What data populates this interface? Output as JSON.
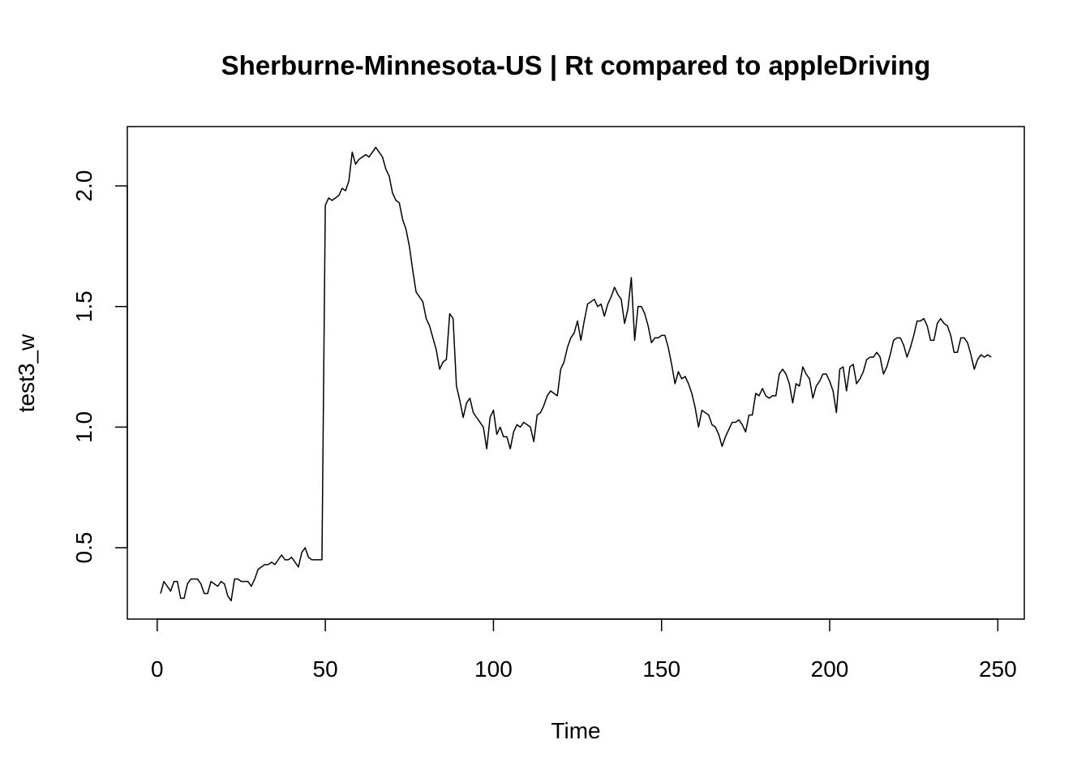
{
  "chart_data": {
    "type": "line",
    "title": "Sherburne-Minnesota-US | Rt compared to appleDriving",
    "x_label": "Time",
    "y_label": "test3_w",
    "xlim": [
      -8.88,
      257.88
    ],
    "ylim": [
      0.204,
      2.246
    ],
    "xticks": [
      0,
      50,
      100,
      150,
      200,
      250
    ],
    "yticks": [
      0.5,
      {
        "value": 1,
        "label": "1.0"
      },
      1.5,
      {
        "value": 2,
        "label": "2.0"
      }
    ],
    "series": [
      {
        "color": "#000000",
        "x": [
          1,
          2,
          3,
          4,
          5,
          6,
          7,
          8,
          9,
          10,
          11,
          12,
          13,
          14,
          15,
          16,
          17,
          18,
          19,
          20,
          21,
          22,
          23,
          24,
          25,
          26,
          27,
          28,
          29,
          30,
          31,
          32,
          33,
          34,
          35,
          36,
          37,
          38,
          39,
          40,
          41,
          42,
          43,
          44,
          45,
          46,
          47,
          48,
          49,
          50,
          51,
          52,
          53,
          54,
          55,
          56,
          57,
          58,
          59,
          60,
          61,
          62,
          63,
          64,
          65,
          66,
          67,
          68,
          69,
          70,
          71,
          72,
          73,
          74,
          75,
          76,
          77,
          78,
          79,
          80,
          81,
          82,
          83,
          84,
          85,
          86,
          87,
          88,
          89,
          90,
          91,
          92,
          93,
          94,
          95,
          96,
          97,
          98,
          99,
          100,
          101,
          102,
          103,
          104,
          105,
          106,
          107,
          108,
          109,
          110,
          111,
          112,
          113,
          114,
          115,
          116,
          117,
          118,
          119,
          120,
          121,
          122,
          123,
          124,
          125,
          126,
          127,
          128,
          129,
          130,
          131,
          132,
          133,
          134,
          135,
          136,
          137,
          138,
          139,
          140,
          141,
          142,
          143,
          144,
          145,
          146,
          147,
          148,
          149,
          150,
          151,
          152,
          153,
          154,
          155,
          156,
          157,
          158,
          159,
          160,
          161,
          162,
          163,
          164,
          165,
          166,
          167,
          168,
          169,
          170,
          171,
          172,
          173,
          174,
          175,
          176,
          177,
          178,
          179,
          180,
          181,
          182,
          183,
          184,
          185,
          186,
          187,
          188,
          189,
          190,
          191,
          192,
          193,
          194,
          195,
          196,
          197,
          198,
          199,
          200,
          201,
          202,
          203,
          204,
          205,
          206,
          207,
          208,
          209,
          210,
          211,
          212,
          213,
          214,
          215,
          216,
          217,
          218,
          219,
          220,
          221,
          222,
          223,
          224,
          225,
          226,
          227,
          228,
          229,
          230,
          231,
          232,
          233,
          234,
          235,
          236,
          237,
          238,
          239,
          240,
          241,
          242,
          243,
          244,
          245,
          246,
          247,
          248
        ],
        "values": [
          0.31,
          0.36,
          0.34,
          0.32,
          0.36,
          0.36,
          0.29,
          0.29,
          0.35,
          0.37,
          0.37,
          0.37,
          0.35,
          0.31,
          0.31,
          0.36,
          0.35,
          0.34,
          0.36,
          0.35,
          0.3,
          0.28,
          0.37,
          0.37,
          0.36,
          0.36,
          0.36,
          0.34,
          0.37,
          0.41,
          0.42,
          0.43,
          0.43,
          0.44,
          0.43,
          0.45,
          0.47,
          0.45,
          0.45,
          0.46,
          0.44,
          0.42,
          0.48,
          0.5,
          0.46,
          0.45,
          0.45,
          0.45,
          0.45,
          1.92,
          1.95,
          1.94,
          1.95,
          1.96,
          1.99,
          1.98,
          2.02,
          2.14,
          2.09,
          2.11,
          2.12,
          2.13,
          2.12,
          2.14,
          2.16,
          2.14,
          2.12,
          2.07,
          2.04,
          1.97,
          1.94,
          1.93,
          1.86,
          1.82,
          1.75,
          1.65,
          1.56,
          1.54,
          1.52,
          1.45,
          1.42,
          1.37,
          1.32,
          1.24,
          1.27,
          1.28,
          1.47,
          1.45,
          1.17,
          1.11,
          1.04,
          1.1,
          1.12,
          1.06,
          1.04,
          1.02,
          1.0,
          0.91,
          1.04,
          1.07,
          0.97,
          1.0,
          0.96,
          0.96,
          0.91,
          0.98,
          1.01,
          1.0,
          1.02,
          1.01,
          1.0,
          0.94,
          1.05,
          1.06,
          1.09,
          1.13,
          1.15,
          1.14,
          1.13,
          1.24,
          1.27,
          1.33,
          1.37,
          1.39,
          1.44,
          1.36,
          1.44,
          1.51,
          1.52,
          1.53,
          1.5,
          1.51,
          1.46,
          1.51,
          1.54,
          1.58,
          1.55,
          1.53,
          1.43,
          1.49,
          1.62,
          1.36,
          1.5,
          1.5,
          1.47,
          1.42,
          1.35,
          1.37,
          1.37,
          1.38,
          1.38,
          1.33,
          1.26,
          1.18,
          1.23,
          1.2,
          1.21,
          1.18,
          1.14,
          1.08,
          1.0,
          1.07,
          1.06,
          1.05,
          1.01,
          1.0,
          0.97,
          0.92,
          0.96,
          0.99,
          1.02,
          1.02,
          1.03,
          1.01,
          0.98,
          1.05,
          1.05,
          1.14,
          1.13,
          1.16,
          1.13,
          1.12,
          1.13,
          1.13,
          1.22,
          1.24,
          1.22,
          1.18,
          1.1,
          1.18,
          1.17,
          1.25,
          1.22,
          1.2,
          1.12,
          1.17,
          1.19,
          1.22,
          1.22,
          1.19,
          1.15,
          1.06,
          1.24,
          1.25,
          1.15,
          1.25,
          1.26,
          1.18,
          1.2,
          1.23,
          1.28,
          1.29,
          1.29,
          1.31,
          1.29,
          1.22,
          1.25,
          1.3,
          1.36,
          1.37,
          1.37,
          1.34,
          1.29,
          1.33,
          1.38,
          1.44,
          1.44,
          1.45,
          1.42,
          1.36,
          1.36,
          1.43,
          1.45,
          1.43,
          1.42,
          1.38,
          1.31,
          1.31,
          1.37,
          1.37,
          1.35,
          1.3,
          1.24,
          1.28,
          1.3,
          1.29,
          1.3,
          1.29
        ]
      }
    ]
  }
}
